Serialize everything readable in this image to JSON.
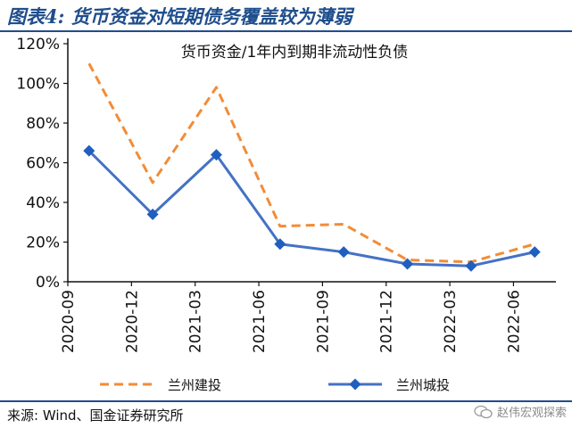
{
  "figure": {
    "title": "图表4:  货币资金对短期债务覆盖较为薄弱",
    "source": "来源:   Wind、国金证券研究所",
    "watermark": "赵伟宏观探索"
  },
  "colors": {
    "accent": "#1f4e8c",
    "series_orange": "#f28c38",
    "series_blue": "#4472c4",
    "marker_blue": "#1f5fbf"
  },
  "chart_data": {
    "type": "line",
    "title": "货币资金/1年内到期非流动性负债",
    "x": [
      "2020-09",
      "2020-12",
      "2021-03",
      "2021-06",
      "2021-09",
      "2021-12",
      "2022-03",
      "2022-06"
    ],
    "x_values": [
      "2020-10",
      "2021-01",
      "2021-04",
      "2021-07",
      "2021-10",
      "2022-01",
      "2022-04",
      "2022-07"
    ],
    "ylim": [
      0,
      1.2
    ],
    "yticks": [
      0,
      0.2,
      0.4,
      0.6,
      0.8,
      1.0,
      1.2
    ],
    "ytick_labels": [
      "0%",
      "20%",
      "40%",
      "60%",
      "80%",
      "100%",
      "120%"
    ],
    "grid": false,
    "legend": "bottom",
    "series": [
      {
        "name": "兰州建投",
        "style": "dashed",
        "values": [
          1.1,
          0.5,
          0.98,
          0.28,
          0.29,
          0.11,
          0.1,
          0.19
        ]
      },
      {
        "name": "兰州城投",
        "style": "solid-diamond",
        "values": [
          0.66,
          0.34,
          0.64,
          0.19,
          0.15,
          0.09,
          0.08,
          0.15
        ]
      }
    ]
  }
}
